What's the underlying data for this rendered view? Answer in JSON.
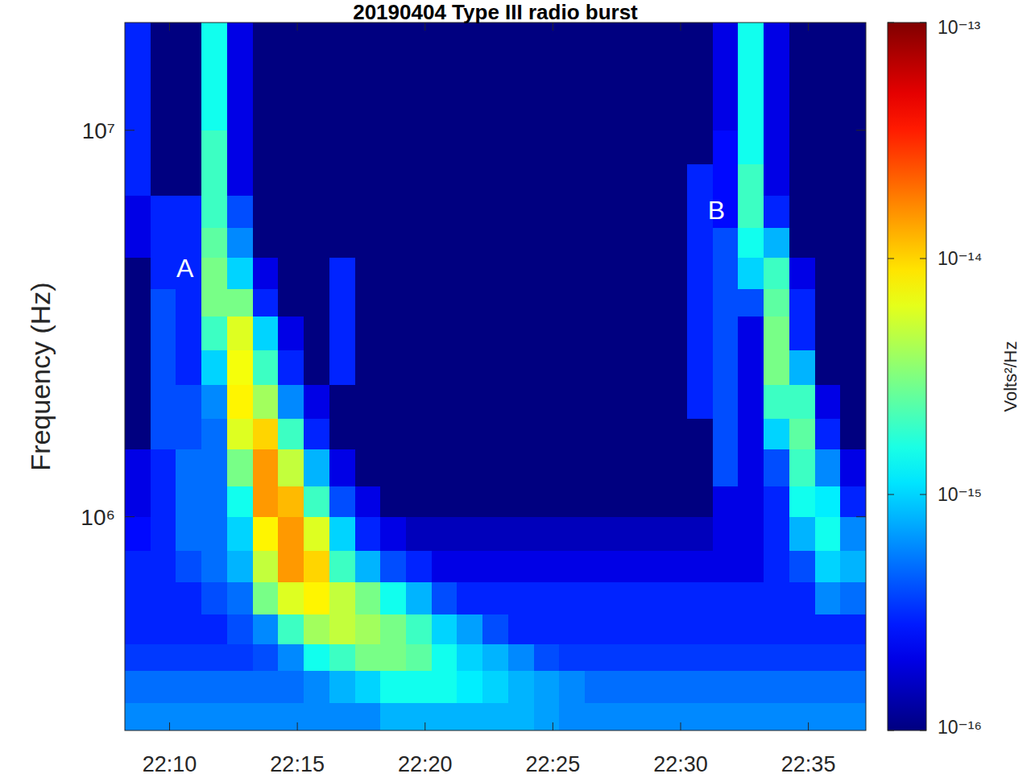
{
  "chart_data": {
    "type": "heatmap",
    "title": "20190404 Type III radio burst",
    "y_label": "Frequency (Hz)",
    "colorbar_label": "Volts²/Hz",
    "color": "jet",
    "log": "y",
    "xlim": [
      1328.25,
      1357.25
    ],
    "ylim": [
      280000,
      19000000
    ],
    "xticks": [
      {
        "value": 1330,
        "label": "22:10"
      },
      {
        "value": 1335,
        "label": "22:15"
      },
      {
        "value": 1340,
        "label": "22:20"
      },
      {
        "value": 1345,
        "label": "22:25"
      },
      {
        "value": 1350,
        "label": "22:30"
      },
      {
        "value": 1355,
        "label": "22:35"
      }
    ],
    "yticks": [
      {
        "value": 1000000,
        "label": "10⁶"
      },
      {
        "value": 10000000,
        "label": "10⁷"
      }
    ],
    "color_range": [
      1e-16,
      1e-13
    ],
    "color_ticks": [
      {
        "value": 1e-16,
        "label": "10⁻¹⁶"
      },
      {
        "value": 1e-15,
        "label": "10⁻¹⁵"
      },
      {
        "value": 1e-14,
        "label": "10⁻¹⁴"
      },
      {
        "value": 1e-13,
        "label": "10⁻¹³"
      }
    ],
    "x_bins": [
      1328.25,
      1329.25,
      1330.25,
      1331.25,
      1332.25,
      1333.25,
      1334.25,
      1335.25,
      1336.25,
      1337.25,
      1338.25,
      1339.25,
      1340.25,
      1341.25,
      1342.25,
      1343.25,
      1344.25,
      1345.25,
      1346.25,
      1347.25,
      1348.25,
      1349.25,
      1350.25,
      1351.25,
      1352.25,
      1353.25,
      1354.25,
      1355.25,
      1356.25,
      1357.25
    ],
    "y_bins": [
      280000,
      330000,
      400000,
      470000,
      560000,
      680000,
      820000,
      1000000,
      1200000,
      1500000,
      1800000,
      2200000,
      2700000,
      3300000,
      3900000,
      4700000,
      5600000,
      6800000,
      8200000,
      10000000,
      12000000,
      15000000,
      19000000
    ],
    "z": [
      [
        6e-16,
        6e-16,
        6e-16,
        6e-16,
        6e-16,
        6e-16,
        6e-16,
        6e-16,
        6e-16,
        6e-16,
        8e-16,
        8e-16,
        8e-16,
        8e-16,
        8e-16,
        8e-16,
        7e-16,
        6e-16,
        6e-16,
        6e-16,
        6e-16,
        6e-16,
        6e-16,
        6e-16,
        6e-16,
        6e-16,
        6e-16,
        6e-16,
        6e-16
      ],
      [
        5e-16,
        5e-16,
        5e-16,
        5e-16,
        5e-16,
        5e-16,
        5e-16,
        6e-16,
        8e-16,
        1e-15,
        1.5e-15,
        1.5e-15,
        1.5e-15,
        1.2e-15,
        1e-15,
        8e-16,
        7e-16,
        6e-16,
        5e-16,
        5e-16,
        5e-16,
        5e-16,
        5e-16,
        5e-16,
        5e-16,
        5e-16,
        5e-16,
        5e-16,
        5e-16
      ],
      [
        3.5e-16,
        3.5e-16,
        3.5e-16,
        3.5e-16,
        3.5e-16,
        4e-16,
        6e-16,
        1.5e-15,
        2e-15,
        3e-15,
        3e-15,
        2.5e-15,
        1.5e-15,
        1e-15,
        8e-16,
        6e-16,
        4e-16,
        3.5e-16,
        3.5e-16,
        3.5e-16,
        3.5e-16,
        3.5e-16,
        3.5e-16,
        3.5e-16,
        3.5e-16,
        3.5e-16,
        3.5e-16,
        3.5e-16,
        3.5e-16
      ],
      [
        3e-16,
        3e-16,
        3e-16,
        3e-16,
        4e-16,
        6e-16,
        2e-15,
        4e-15,
        5e-15,
        4e-15,
        3e-15,
        2e-15,
        1e-15,
        7e-16,
        4e-16,
        3e-16,
        3e-16,
        3e-16,
        3e-16,
        3e-16,
        3e-16,
        3e-16,
        3e-16,
        3e-16,
        3e-16,
        3e-16,
        3e-16,
        3e-16,
        3e-16
      ],
      [
        3e-16,
        3e-16,
        3e-16,
        4e-16,
        5e-16,
        3e-15,
        6e-15,
        8e-15,
        5e-15,
        3e-15,
        1.5e-15,
        8e-16,
        4e-16,
        3e-16,
        3e-16,
        3e-16,
        3e-16,
        3e-16,
        3e-16,
        3e-16,
        3e-16,
        3e-16,
        3e-16,
        3e-16,
        3e-16,
        3e-16,
        3e-16,
        6e-16,
        5e-16
      ],
      [
        3e-16,
        3e-16,
        4e-16,
        5e-16,
        8e-16,
        5e-15,
        1.5e-14,
        1e-14,
        2e-15,
        8e-16,
        4e-16,
        3e-16,
        2e-16,
        2e-16,
        2e-16,
        2e-16,
        2e-16,
        2e-16,
        2e-16,
        2e-16,
        2e-16,
        2e-16,
        2e-16,
        2e-16,
        2e-16,
        3e-16,
        4e-16,
        1e-15,
        8e-16
      ],
      [
        2.5e-16,
        3e-16,
        5e-16,
        5e-16,
        1e-15,
        8e-15,
        1.5e-14,
        6e-15,
        1e-15,
        3e-16,
        2e-16,
        1.5e-16,
        1.5e-16,
        1.5e-16,
        1.5e-16,
        1.5e-16,
        1.5e-16,
        1.5e-16,
        1.5e-16,
        1.5e-16,
        1.5e-16,
        1.5e-16,
        1.5e-16,
        2e-16,
        2e-16,
        3e-16,
        8e-16,
        1.5e-15,
        6e-16
      ],
      [
        2e-16,
        3e-16,
        5e-16,
        5e-16,
        1.5e-15,
        1.5e-14,
        1.2e-14,
        2e-15,
        4e-16,
        2e-16,
        1e-16,
        1e-16,
        1e-16,
        1e-16,
        1e-16,
        1e-16,
        1e-16,
        1e-16,
        1e-16,
        1e-16,
        1e-16,
        1e-16,
        1e-16,
        2e-16,
        2e-16,
        3e-16,
        1.5e-15,
        1.2e-15,
        3e-16
      ],
      [
        2e-16,
        3e-16,
        5e-16,
        5e-16,
        3e-15,
        1.5e-14,
        5e-15,
        8e-16,
        2e-16,
        1e-16,
        1e-16,
        1e-16,
        1e-16,
        1e-16,
        1e-16,
        1e-16,
        1e-16,
        1e-16,
        1e-16,
        1e-16,
        1e-16,
        1e-16,
        1e-16,
        4e-16,
        2e-16,
        4e-16,
        2e-15,
        6e-16,
        2e-16
      ],
      [
        1e-16,
        4e-16,
        4e-16,
        5e-16,
        6e-15,
        1e-14,
        2e-15,
        3e-16,
        1e-16,
        1e-16,
        1e-16,
        1e-16,
        1e-16,
        1e-16,
        1e-16,
        1e-16,
        1e-16,
        1e-16,
        1e-16,
        1e-16,
        1e-16,
        1e-16,
        1e-16,
        4e-16,
        2e-16,
        1e-15,
        2.5e-15,
        3e-16,
        1e-16
      ],
      [
        1e-16,
        4e-16,
        4e-16,
        6e-16,
        8e-15,
        4e-15,
        6e-16,
        2e-16,
        1e-16,
        1e-16,
        1e-16,
        1e-16,
        1e-16,
        1e-16,
        1e-16,
        1e-16,
        1e-16,
        1e-16,
        1e-16,
        1e-16,
        1e-16,
        1e-16,
        3e-16,
        4e-16,
        2e-16,
        2e-15,
        2e-15,
        2e-16,
        1e-16
      ],
      [
        1e-16,
        4e-16,
        3e-16,
        1e-15,
        7e-15,
        2e-15,
        3e-16,
        1e-16,
        3e-16,
        1e-16,
        1e-16,
        1e-16,
        1e-16,
        1e-16,
        1e-16,
        1e-16,
        1e-16,
        1e-16,
        1e-16,
        1e-16,
        1e-16,
        1e-16,
        3e-16,
        4e-16,
        2e-16,
        3e-15,
        8e-16,
        1e-16,
        1e-16
      ],
      [
        1e-16,
        4e-16,
        3e-16,
        2e-15,
        6e-15,
        1e-15,
        2e-16,
        1e-16,
        3e-16,
        1e-16,
        1e-16,
        1e-16,
        1e-16,
        1e-16,
        1e-16,
        1e-16,
        1e-16,
        1e-16,
        1e-16,
        1e-16,
        1e-16,
        1e-16,
        3e-16,
        4e-16,
        2e-16,
        3e-15,
        3e-16,
        1e-16,
        1e-16
      ],
      [
        1e-16,
        4e-16,
        3e-16,
        3e-15,
        3e-15,
        3e-16,
        1e-16,
        1e-16,
        3e-16,
        1e-16,
        1e-16,
        1e-16,
        1e-16,
        1e-16,
        1e-16,
        1e-16,
        1e-16,
        1e-16,
        1e-16,
        1e-16,
        1e-16,
        1e-16,
        3e-16,
        4e-16,
        4e-16,
        2.5e-15,
        3e-16,
        1e-16,
        1e-16
      ],
      [
        1e-16,
        3e-16,
        3e-16,
        3e-15,
        1e-15,
        2e-16,
        1e-16,
        1e-16,
        3e-16,
        1e-16,
        1e-16,
        1e-16,
        1e-16,
        1e-16,
        1e-16,
        1e-16,
        1e-16,
        1e-16,
        1e-16,
        1e-16,
        1e-16,
        1e-16,
        3e-16,
        4e-16,
        1e-15,
        2e-15,
        2e-16,
        1e-16,
        1e-16
      ],
      [
        2e-16,
        3e-16,
        3e-16,
        2.5e-15,
        6e-16,
        1e-16,
        1e-16,
        1e-16,
        1e-16,
        1e-16,
        1e-16,
        1e-16,
        1e-16,
        1e-16,
        1e-16,
        1e-16,
        1e-16,
        1e-16,
        1e-16,
        1e-16,
        1e-16,
        1e-16,
        3e-16,
        4e-16,
        1.5e-15,
        8e-16,
        1e-16,
        1e-16,
        1e-16
      ],
      [
        2e-16,
        3e-16,
        3e-16,
        2e-15,
        4e-16,
        1e-16,
        1e-16,
        1e-16,
        1e-16,
        1e-16,
        1e-16,
        1e-16,
        1e-16,
        1e-16,
        1e-16,
        1e-16,
        1e-16,
        1e-16,
        1e-16,
        1e-16,
        1e-16,
        1e-16,
        3e-16,
        2.5e-16,
        2e-15,
        3e-16,
        1e-16,
        1e-16,
        1e-16
      ],
      [
        3e-16,
        1e-16,
        1e-16,
        2e-15,
        2e-16,
        1e-16,
        1e-16,
        1e-16,
        1e-16,
        1e-16,
        1e-16,
        1e-16,
        1e-16,
        1e-16,
        1e-16,
        1e-16,
        1e-16,
        1e-16,
        1e-16,
        1e-16,
        1e-16,
        1e-16,
        3e-16,
        2.5e-16,
        2e-15,
        2e-16,
        1e-16,
        1e-16,
        1e-16
      ],
      [
        3e-16,
        1e-16,
        1e-16,
        2e-15,
        2e-16,
        1e-16,
        1e-16,
        1e-16,
        1e-16,
        1e-16,
        1e-16,
        1e-16,
        1e-16,
        1e-16,
        1e-16,
        1e-16,
        1e-16,
        1e-16,
        1e-16,
        1e-16,
        1e-16,
        1e-16,
        1e-16,
        2.5e-16,
        1.5e-15,
        2e-16,
        1e-16,
        1e-16,
        1e-16
      ],
      [
        3e-16,
        1e-16,
        1e-16,
        1.5e-15,
        2e-16,
        1e-16,
        1e-16,
        1e-16,
        1e-16,
        1e-16,
        1e-16,
        1e-16,
        1e-16,
        1e-16,
        1e-16,
        1e-16,
        1e-16,
        1e-16,
        1e-16,
        1e-16,
        1e-16,
        1e-16,
        1e-16,
        2e-16,
        1.5e-15,
        2e-16,
        1e-16,
        1e-16,
        1e-16
      ],
      [
        3e-16,
        1e-16,
        1e-16,
        1.5e-15,
        2e-16,
        1e-16,
        1e-16,
        1e-16,
        1e-16,
        1e-16,
        1e-16,
        1e-16,
        1e-16,
        1e-16,
        1e-16,
        1e-16,
        1e-16,
        1e-16,
        1e-16,
        1e-16,
        1e-16,
        1e-16,
        1e-16,
        2e-16,
        1.5e-15,
        2e-16,
        1e-16,
        1e-16,
        1e-16
      ],
      [
        3e-16,
        1e-16,
        1e-16,
        1.5e-15,
        2e-16,
        1e-16,
        1e-16,
        1e-16,
        1e-16,
        1e-16,
        1e-16,
        1e-16,
        1e-16,
        1e-16,
        1e-16,
        1e-16,
        1e-16,
        1e-16,
        1e-16,
        1e-16,
        1e-16,
        1e-16,
        1e-16,
        2e-16,
        1.5e-15,
        2e-16,
        1e-16,
        1e-16,
        1e-16
      ]
    ],
    "annotations": [
      {
        "text": "A",
        "x": 1330.6,
        "y": 4400000
      },
      {
        "text": "B",
        "x": 1351.4,
        "y": 6200000
      }
    ]
  }
}
